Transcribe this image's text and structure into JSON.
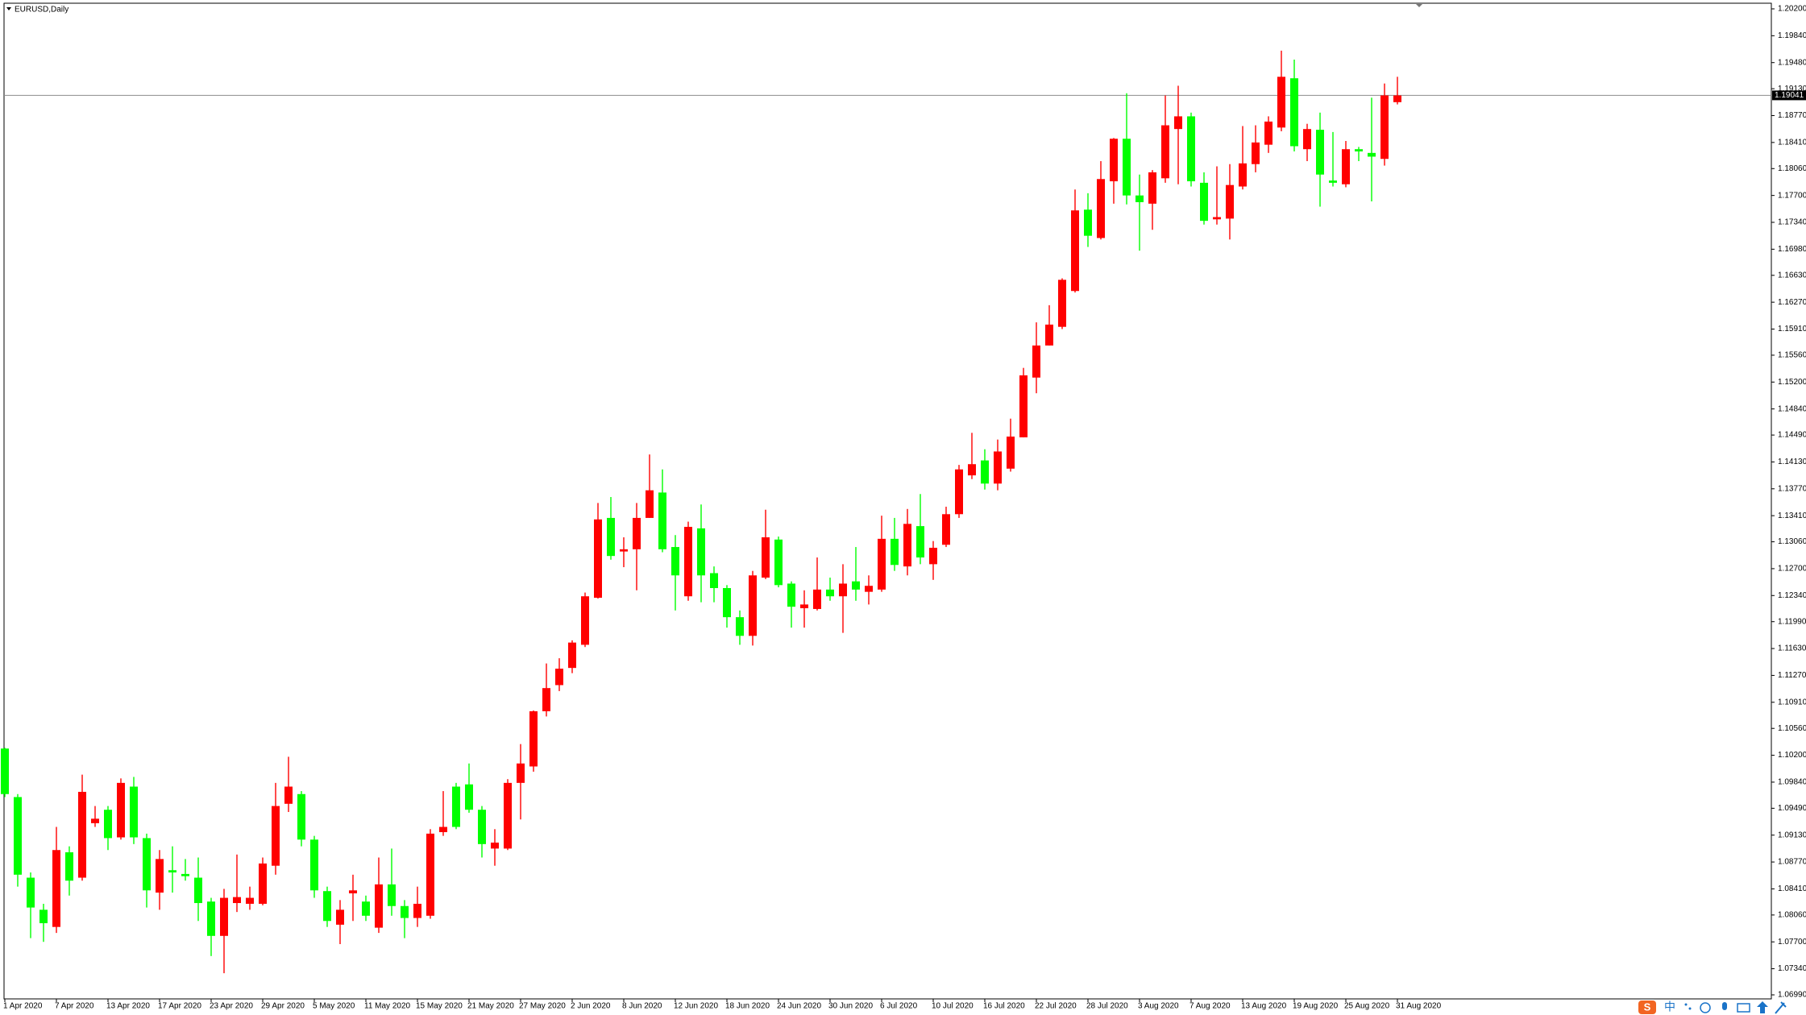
{
  "chart_data": {
    "type": "candlestick",
    "title": "EURUSD,Daily",
    "categories": [
      "1 Apr 2020",
      null,
      null,
      null,
      "7 Apr 2020",
      null,
      null,
      null,
      "13 Apr 2020",
      null,
      null,
      null,
      "17 Apr 2020",
      null,
      null,
      null,
      "23 Apr 2020",
      null,
      null,
      null,
      "29 Apr 2020",
      null,
      null,
      null,
      "5 May 2020",
      null,
      null,
      null,
      "11 May 2020",
      null,
      null,
      null,
      "15 May 2020",
      null,
      null,
      null,
      "21 May 2020",
      null,
      null,
      null,
      "27 May 2020",
      null,
      null,
      null,
      "2 Jun 2020",
      null,
      null,
      null,
      "8 Jun 2020",
      null,
      null,
      null,
      "12 Jun 2020",
      null,
      null,
      null,
      "18 Jun 2020",
      null,
      null,
      null,
      "24 Jun 2020",
      null,
      null,
      null,
      "30 Jun 2020",
      null,
      null,
      null,
      "6 Jul 2020",
      null,
      null,
      null,
      "10 Jul 2020",
      null,
      null,
      null,
      "16 Jul 2020",
      null,
      null,
      null,
      "22 Jul 2020",
      null,
      null,
      null,
      "28 Jul 2020",
      null,
      null,
      null,
      "3 Aug 2020",
      null,
      null,
      null,
      "7 Aug 2020",
      null,
      null,
      null,
      "13 Aug 2020",
      null,
      null,
      null,
      "19 Aug 2020",
      null,
      null,
      null,
      "25 Aug 2020",
      null,
      null,
      null,
      "31 Aug 2020"
    ],
    "open": [
      1.1029,
      1.0964,
      1.0856,
      1.0813,
      1.079,
      1.089,
      1.0856,
      1.0929,
      1.0947,
      1.091,
      1.0978,
      1.0909,
      1.0836,
      1.0866,
      1.0861,
      1.0856,
      1.0824,
      1.0778,
      1.0822,
      1.0821,
      1.0821,
      1.0872,
      1.0955,
      1.0968,
      1.0907,
      1.0838,
      1.0793,
      1.0835,
      1.0824,
      1.0789,
      1.0847,
      1.0818,
      1.0802,
      1.0805,
      1.0917,
      1.0978,
      1.0981,
      1.0947,
      1.0895,
      1.0895,
      1.0983,
      1.1005,
      1.1079,
      1.1114,
      1.1137,
      1.1168,
      1.1231,
      1.1338,
      1.1293,
      1.1296,
      1.1338,
      1.1372,
      1.1299,
      1.1233,
      1.1324,
      1.1264,
      1.1244,
      1.1205,
      1.118,
      1.1258,
      1.1309,
      1.125,
      1.1217,
      1.1216,
      1.1242,
      1.1233,
      1.1253,
      1.1239,
      1.1242,
      1.131,
      1.1273,
      1.1327,
      1.1276,
      1.1302,
      1.1343,
      1.1395,
      1.1415,
      1.1384,
      1.1404,
      1.1446,
      1.1526,
      1.1569,
      1.1594,
      1.1642,
      1.1751,
      1.1713,
      1.1789,
      1.1846,
      1.177,
      1.1759,
      1.1793,
      1.1859,
      1.1876,
      1.1787,
      1.1738,
      1.1739,
      1.1782,
      1.1812,
      1.1838,
      1.1861,
      1.1927,
      1.1832,
      1.1858,
      1.179,
      1.1785,
      1.1832,
      1.1827,
      1.1819,
      1.1895
    ],
    "high": [
      1.103,
      1.0968,
      1.0863,
      1.0821,
      1.0924,
      1.0898,
      1.0994,
      1.0952,
      1.0952,
      1.0989,
      1.0991,
      1.0915,
      1.0893,
      1.0898,
      1.0881,
      1.0883,
      1.0829,
      1.0841,
      1.0887,
      1.0844,
      1.0883,
      1.0983,
      1.1018,
      1.0972,
      1.0912,
      1.0844,
      1.0826,
      1.086,
      1.0832,
      1.0883,
      1.0895,
      1.0826,
      1.0844,
      1.0921,
      1.0972,
      1.0983,
      1.1009,
      1.0952,
      1.0921,
      1.0988,
      1.1035,
      1.108,
      1.1143,
      1.115,
      1.1174,
      1.1238,
      1.1358,
      1.1366,
      1.1312,
      1.1358,
      1.1423,
      1.1403,
      1.1315,
      1.1333,
      1.1356,
      1.1273,
      1.1248,
      1.1214,
      1.1267,
      1.1349,
      1.1313,
      1.1253,
      1.1241,
      1.1285,
      1.1258,
      1.1276,
      1.1299,
      1.1261,
      1.1341,
      1.1338,
      1.135,
      1.137,
      1.1307,
      1.1353,
      1.1409,
      1.1452,
      1.143,
      1.1443,
      1.1471,
      1.1539,
      1.16,
      1.1623,
      1.1659,
      1.1778,
      1.1773,
      1.1816,
      1.1847,
      1.1907,
      1.1798,
      1.1804,
      1.1904,
      1.1917,
      1.1881,
      1.1801,
      1.1809,
      1.1812,
      1.1863,
      1.1864,
      1.1876,
      1.1964,
      1.1952,
      1.1866,
      1.1881,
      1.1855,
      1.1843,
      1.1835,
      1.1901,
      1.192,
      1.1929
    ],
    "low": [
      1.0964,
      1.0844,
      1.0775,
      1.077,
      1.0782,
      1.0832,
      1.0852,
      1.0924,
      1.0893,
      1.0907,
      1.0901,
      1.0816,
      1.0813,
      1.0836,
      1.0852,
      1.0798,
      1.0751,
      1.0728,
      1.081,
      1.0813,
      1.0819,
      1.086,
      1.0944,
      1.0898,
      1.0829,
      1.079,
      1.0767,
      1.0798,
      1.0798,
      1.0782,
      1.0805,
      1.0775,
      1.079,
      1.0801,
      1.0912,
      1.0921,
      1.0943,
      1.0883,
      1.0872,
      1.0893,
      1.0934,
      1.0998,
      1.1072,
      1.1106,
      1.113,
      1.1165,
      1.123,
      1.1282,
      1.1272,
      1.1241,
      1.1338,
      1.1292,
      1.1214,
      1.1227,
      1.1225,
      1.1225,
      1.1191,
      1.1168,
      1.1167,
      1.1256,
      1.1245,
      1.1191,
      1.1191,
      1.1214,
      1.1227,
      1.1184,
      1.1227,
      1.1222,
      1.1239,
      1.1267,
      1.1261,
      1.1276,
      1.1255,
      1.1299,
      1.1338,
      1.139,
      1.1376,
      1.1375,
      1.14,
      1.1446,
      1.1505,
      1.1569,
      1.1591,
      1.164,
      1.1701,
      1.1711,
      1.1759,
      1.1758,
      1.1696,
      1.1724,
      1.1787,
      1.1785,
      1.1782,
      1.1731,
      1.1731,
      1.1711,
      1.1778,
      1.1801,
      1.1827,
      1.1856,
      1.1829,
      1.1816,
      1.1755,
      1.1782,
      1.1781,
      1.1816,
      1.1762,
      1.181,
      1.1892
    ],
    "close": [
      1.0968,
      1.086,
      1.0816,
      1.0795,
      1.0893,
      1.0852,
      1.0971,
      1.0935,
      1.0909,
      1.0983,
      1.091,
      1.0839,
      1.0881,
      1.0863,
      1.0858,
      1.0822,
      1.0778,
      1.0829,
      1.083,
      1.0829,
      1.0875,
      1.0952,
      1.0978,
      1.0907,
      1.0839,
      1.0798,
      1.0813,
      1.0839,
      1.0805,
      1.0847,
      1.0818,
      1.0802,
      1.0821,
      1.0915,
      1.0924,
      1.0924,
      1.0947,
      1.0901,
      1.0903,
      1.0983,
      1.1009,
      1.1079,
      1.111,
      1.1136,
      1.1171,
      1.1233,
      1.1336,
      1.1287,
      1.1296,
      1.1338,
      1.1375,
      1.1296,
      1.1261,
      1.1326,
      1.1261,
      1.1244,
      1.1205,
      1.118,
      1.1261,
      1.1312,
      1.1248,
      1.1219,
      1.1222,
      1.1242,
      1.1233,
      1.125,
      1.1242,
      1.1247,
      1.131,
      1.1275,
      1.133,
      1.1285,
      1.1298,
      1.1343,
      1.1403,
      1.141,
      1.1384,
      1.1427,
      1.1447,
      1.1529,
      1.1569,
      1.1597,
      1.1657,
      1.175,
      1.1716,
      1.1792,
      1.1846,
      1.177,
      1.1761,
      1.1801,
      1.1864,
      1.1876,
      1.1789,
      1.1736,
      1.1741,
      1.1784,
      1.1813,
      1.1841,
      1.1869,
      1.1929,
      1.1836,
      1.1859,
      1.1798,
      1.1787,
      1.1832,
      1.1829,
      1.1822,
      1.1904,
      1.1904
    ],
    "up_color": "#ff0000",
    "down_color": "#00ff00",
    "ylim": [
      1.0699,
      1.202
    ],
    "yticks": [
      {
        "value": 1.202,
        "label": "1.20200"
      },
      {
        "value": 1.1984,
        "label": "1.19840"
      },
      {
        "value": 1.1948,
        "label": "1.19480"
      },
      {
        "value": 1.1913,
        "label": "1.19130"
      },
      {
        "value": 1.1877,
        "label": "1.18770"
      },
      {
        "value": 1.1841,
        "label": "1.18410"
      },
      {
        "value": 1.1806,
        "label": "1.18060"
      },
      {
        "value": 1.177,
        "label": "1.17700"
      },
      {
        "value": 1.1734,
        "label": "1.17340"
      },
      {
        "value": 1.1698,
        "label": "1.16980"
      },
      {
        "value": 1.1663,
        "label": "1.16630"
      },
      {
        "value": 1.1627,
        "label": "1.16270"
      },
      {
        "value": 1.1591,
        "label": "1.15910"
      },
      {
        "value": 1.1556,
        "label": "1.15560"
      },
      {
        "value": 1.152,
        "label": "1.15200"
      },
      {
        "value": 1.1484,
        "label": "1.14840"
      },
      {
        "value": 1.1449,
        "label": "1.14490"
      },
      {
        "value": 1.1413,
        "label": "1.14130"
      },
      {
        "value": 1.1377,
        "label": "1.13770"
      },
      {
        "value": 1.1341,
        "label": "1.13410"
      },
      {
        "value": 1.1306,
        "label": "1.13060"
      },
      {
        "value": 1.127,
        "label": "1.12700"
      },
      {
        "value": 1.1234,
        "label": "1.12340"
      },
      {
        "value": 1.1199,
        "label": "1.11990"
      },
      {
        "value": 1.1163,
        "label": "1.11630"
      },
      {
        "value": 1.1127,
        "label": "1.11270"
      },
      {
        "value": 1.1091,
        "label": "1.10910"
      },
      {
        "value": 1.1056,
        "label": "1.10560"
      },
      {
        "value": 1.102,
        "label": "1.10200"
      },
      {
        "value": 1.0984,
        "label": "1.09840"
      },
      {
        "value": 1.0949,
        "label": "1.09490"
      },
      {
        "value": 1.0913,
        "label": "1.09130"
      },
      {
        "value": 1.0877,
        "label": "1.08770"
      },
      {
        "value": 1.0841,
        "label": "1.08410"
      },
      {
        "value": 1.0806,
        "label": "1.08060"
      },
      {
        "value": 1.077,
        "label": "1.07700"
      },
      {
        "value": 1.0734,
        "label": "1.07340"
      },
      {
        "value": 1.0699,
        "label": "1.06990"
      }
    ],
    "current_price": 1.19041
  },
  "ime_toolbar": {
    "logo": "S",
    "language": "中"
  }
}
